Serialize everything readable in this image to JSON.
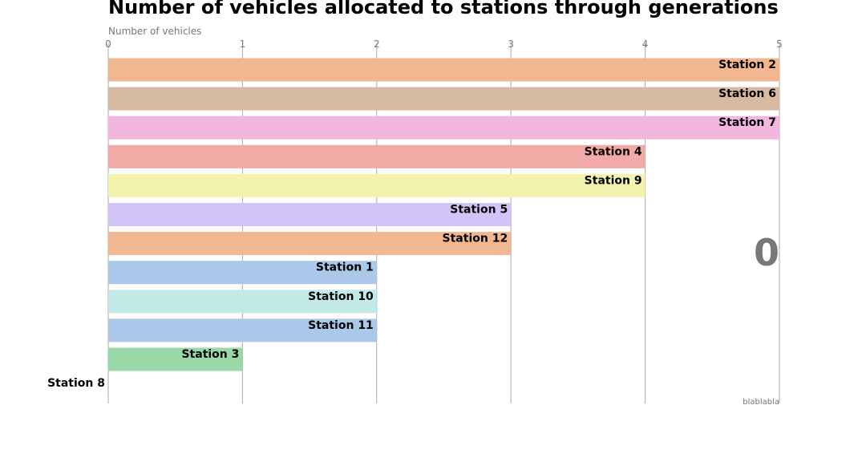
{
  "chart_data": {
    "type": "bar",
    "orientation": "horizontal",
    "title": "Number of vehicles allocated to stations through generations",
    "xlabel": "Number of vehicles",
    "xlim": [
      0,
      5
    ],
    "xticks": [
      "0",
      "1",
      "2",
      "3",
      "4",
      "5"
    ],
    "grid": true,
    "generation_label": "0",
    "credit": "blablabla",
    "categories": [
      "Station 2",
      "Station 6",
      "Station 7",
      "Station 4",
      "Station 9",
      "Station 5",
      "Station 12",
      "Station 1",
      "Station 10",
      "Station 11",
      "Station 3",
      "Station 8"
    ],
    "values": [
      5,
      5,
      5,
      4,
      4,
      3,
      3,
      2,
      2,
      2,
      1,
      0
    ],
    "colors": [
      "#f1b791",
      "#d6bba2",
      "#f1b7df",
      "#f1aaa6",
      "#f3f3b0",
      "#d3c4f7",
      "#f1b791",
      "#abc8eb",
      "#c2e9e7",
      "#abc8eb",
      "#99d9a8",
      "#f1aaa6"
    ]
  }
}
